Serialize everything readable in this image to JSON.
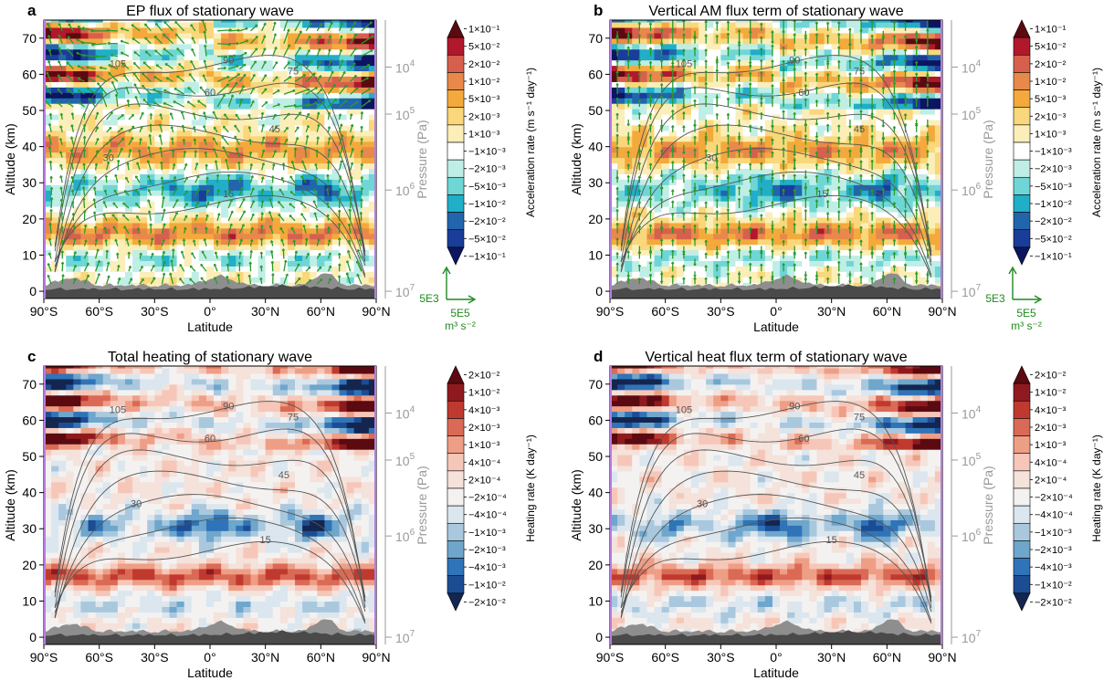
{
  "chart_data": [
    {
      "panel": "a",
      "type": "heatmap",
      "title": "EP flux of stationary wave",
      "xlabel": "Latitude",
      "ylabel": "Altitude (km)",
      "y2label": "Pressure (Pa)",
      "x_ticks": [
        "90°S",
        "60°S",
        "30°S",
        "0°",
        "30°N",
        "60°N",
        "90°N"
      ],
      "x_values": [
        -90,
        -60,
        -30,
        0,
        30,
        60,
        90
      ],
      "y_ticks": [
        0,
        10,
        20,
        30,
        40,
        50,
        60,
        70
      ],
      "ylim": [
        -2,
        75
      ],
      "y2_ticks": [
        {
          "mant": "10",
          "exp": "4",
          "alt": 62
        },
        {
          "mant": "10",
          "exp": "5",
          "alt": 49
        },
        {
          "mant": "10",
          "exp": "6",
          "alt": 28
        },
        {
          "mant": "10",
          "exp": "7",
          "alt": 0
        }
      ],
      "colorbar_title": "Acceleration rate (m s⁻¹ day⁻¹)",
      "colorbar_levels": [
        "1×10⁻¹",
        "5×10⁻²",
        "2×10⁻²",
        "1×10⁻²",
        "5×10⁻³",
        "2×10⁻³",
        "1×10⁻³",
        "−1×10⁻³",
        "−2×10⁻³",
        "−5×10⁻³",
        "−1×10⁻²",
        "−2×10⁻²",
        "−5×10⁻²",
        "−1×10⁻¹"
      ],
      "colorbar_colors": [
        "#5a0a10",
        "#b2182b",
        "#d6604d",
        "#e8894a",
        "#f4a93c",
        "#f9d77a",
        "#fbeeb8",
        "#ffffff",
        "#bfeee6",
        "#6fd6d6",
        "#20aec8",
        "#2166ac",
        "#1a3d9a",
        "#0c1560"
      ],
      "contour_labels": [
        {
          "value": "105",
          "lat": -50,
          "alt": 63
        },
        {
          "value": "90",
          "lat": 10,
          "alt": 64
        },
        {
          "value": "75",
          "lat": 45,
          "alt": 61
        },
        {
          "value": "60",
          "lat": 0,
          "alt": 55
        },
        {
          "value": "45",
          "lat": 35,
          "alt": 45
        },
        {
          "value": "30",
          "lat": -55,
          "alt": 37
        },
        {
          "value": "15",
          "lat": 10,
          "alt": 27
        }
      ],
      "vector_reference": {
        "vertical": "5E3",
        "horizontal": "5E5",
        "units": "m³ s⁻²"
      },
      "arrows": true
    },
    {
      "panel": "b",
      "type": "heatmap",
      "title": "Vertical AM flux term of stationary wave",
      "xlabel": "Latitude",
      "ylabel": "Altitude (km)",
      "y2label": "Pressure (Pa)",
      "x_ticks": [
        "90°S",
        "60°S",
        "30°S",
        "0°",
        "30°N",
        "60°N",
        "90°N"
      ],
      "x_values": [
        -90,
        -60,
        -30,
        0,
        30,
        60,
        90
      ],
      "y_ticks": [
        0,
        10,
        20,
        30,
        40,
        50,
        60,
        70
      ],
      "ylim": [
        -2,
        75
      ],
      "y2_ticks": [
        {
          "mant": "10",
          "exp": "4",
          "alt": 62
        },
        {
          "mant": "10",
          "exp": "5",
          "alt": 49
        },
        {
          "mant": "10",
          "exp": "6",
          "alt": 28
        },
        {
          "mant": "10",
          "exp": "7",
          "alt": 0
        }
      ],
      "colorbar_title": "Acceleration rate (m s⁻¹ day⁻¹)",
      "colorbar_levels": [
        "1×10⁻¹",
        "5×10⁻²",
        "2×10⁻²",
        "1×10⁻²",
        "5×10⁻³",
        "2×10⁻³",
        "1×10⁻³",
        "−1×10⁻³",
        "−2×10⁻³",
        "−5×10⁻³",
        "−1×10⁻²",
        "−2×10⁻²",
        "−5×10⁻²",
        "−1×10⁻¹"
      ],
      "colorbar_colors": [
        "#5a0a10",
        "#b2182b",
        "#d6604d",
        "#e8894a",
        "#f4a93c",
        "#f9d77a",
        "#fbeeb8",
        "#ffffff",
        "#bfeee6",
        "#6fd6d6",
        "#20aec8",
        "#2166ac",
        "#1a3d9a",
        "#0c1560"
      ],
      "contour_labels": [
        {
          "value": "105",
          "lat": -50,
          "alt": 63
        },
        {
          "value": "90",
          "lat": 10,
          "alt": 64
        },
        {
          "value": "75",
          "lat": 45,
          "alt": 61
        },
        {
          "value": "60",
          "lat": 15,
          "alt": 55
        },
        {
          "value": "45",
          "lat": 45,
          "alt": 45
        },
        {
          "value": "30",
          "lat": -35,
          "alt": 37
        },
        {
          "value": "15",
          "lat": 25,
          "alt": 27
        }
      ],
      "vector_reference": {
        "vertical": "5E3",
        "horizontal": "5E5",
        "units": "m³ s⁻²"
      },
      "arrows": true
    },
    {
      "panel": "c",
      "type": "heatmap",
      "title": "Total heating of stationary wave",
      "xlabel": "Latitude",
      "ylabel": "Altitude (km)",
      "y2label": "Pressure (Pa)",
      "x_ticks": [
        "90°S",
        "60°S",
        "30°S",
        "0°",
        "30°N",
        "60°N",
        "90°N"
      ],
      "x_values": [
        -90,
        -60,
        -30,
        0,
        30,
        60,
        90
      ],
      "y_ticks": [
        0,
        10,
        20,
        30,
        40,
        50,
        60,
        70
      ],
      "ylim": [
        -2,
        75
      ],
      "y2_ticks": [
        {
          "mant": "10",
          "exp": "4",
          "alt": 62
        },
        {
          "mant": "10",
          "exp": "5",
          "alt": 49
        },
        {
          "mant": "10",
          "exp": "6",
          "alt": 28
        },
        {
          "mant": "10",
          "exp": "7",
          "alt": 0
        }
      ],
      "colorbar_title": "Heating rate (K day⁻¹)",
      "colorbar_levels": [
        "2×10⁻²",
        "1×10⁻²",
        "4×10⁻³",
        "2×10⁻³",
        "1×10⁻³",
        "4×10⁻⁴",
        "2×10⁻⁴",
        "−2×10⁻⁴",
        "−4×10⁻⁴",
        "−1×10⁻³",
        "−2×10⁻³",
        "−4×10⁻³",
        "−1×10⁻²",
        "−2×10⁻²"
      ],
      "colorbar_colors": [
        "#5a0a10",
        "#8e1a1f",
        "#c0392f",
        "#da6a55",
        "#ef9e86",
        "#f6c7b8",
        "#f4e2db",
        "#f4f2f1",
        "#dbe6ee",
        "#a9c8de",
        "#6ea6cc",
        "#2f74b8",
        "#1c4d94",
        "#14264f"
      ],
      "contour_labels": [
        {
          "value": "105",
          "lat": -50,
          "alt": 63
        },
        {
          "value": "90",
          "lat": 10,
          "alt": 64
        },
        {
          "value": "75",
          "lat": 45,
          "alt": 61
        },
        {
          "value": "60",
          "lat": 0,
          "alt": 55
        },
        {
          "value": "45",
          "lat": 40,
          "alt": 45
        },
        {
          "value": "30",
          "lat": -40,
          "alt": 37
        },
        {
          "value": "15",
          "lat": 30,
          "alt": 27
        }
      ],
      "arrows": false
    },
    {
      "panel": "d",
      "type": "heatmap",
      "title": "Vertical heat flux term of stationary wave",
      "xlabel": "Latitude",
      "ylabel": "Altitude (km)",
      "y2label": "Pressure (Pa)",
      "x_ticks": [
        "90°S",
        "60°S",
        "30°S",
        "0°",
        "30°N",
        "60°N",
        "90°N"
      ],
      "x_values": [
        -90,
        -60,
        -30,
        0,
        30,
        60,
        90
      ],
      "y_ticks": [
        0,
        10,
        20,
        30,
        40,
        50,
        60,
        70
      ],
      "ylim": [
        -2,
        75
      ],
      "y2_ticks": [
        {
          "mant": "10",
          "exp": "4",
          "alt": 62
        },
        {
          "mant": "10",
          "exp": "5",
          "alt": 49
        },
        {
          "mant": "10",
          "exp": "6",
          "alt": 28
        },
        {
          "mant": "10",
          "exp": "7",
          "alt": 0
        }
      ],
      "colorbar_title": "Heating rate (K day⁻¹)",
      "colorbar_levels": [
        "2×10⁻²",
        "1×10⁻²",
        "4×10⁻³",
        "2×10⁻³",
        "1×10⁻³",
        "4×10⁻⁴",
        "2×10⁻⁴",
        "−2×10⁻⁴",
        "−4×10⁻⁴",
        "−1×10⁻³",
        "−2×10⁻³",
        "−4×10⁻³",
        "−1×10⁻²",
        "−2×10⁻²"
      ],
      "colorbar_colors": [
        "#5a0a10",
        "#8e1a1f",
        "#c0392f",
        "#da6a55",
        "#ef9e86",
        "#f6c7b8",
        "#f4e2db",
        "#f4f2f1",
        "#dbe6ee",
        "#a9c8de",
        "#6ea6cc",
        "#2f74b8",
        "#1c4d94",
        "#14264f"
      ],
      "contour_labels": [
        {
          "value": "105",
          "lat": -50,
          "alt": 63
        },
        {
          "value": "90",
          "lat": 10,
          "alt": 64
        },
        {
          "value": "75",
          "lat": 45,
          "alt": 61
        },
        {
          "value": "60",
          "lat": 15,
          "alt": 55
        },
        {
          "value": "45",
          "lat": 45,
          "alt": 45
        },
        {
          "value": "30",
          "lat": -40,
          "alt": 37
        },
        {
          "value": "15",
          "lat": 30,
          "alt": 27
        }
      ],
      "arrows": false
    }
  ]
}
